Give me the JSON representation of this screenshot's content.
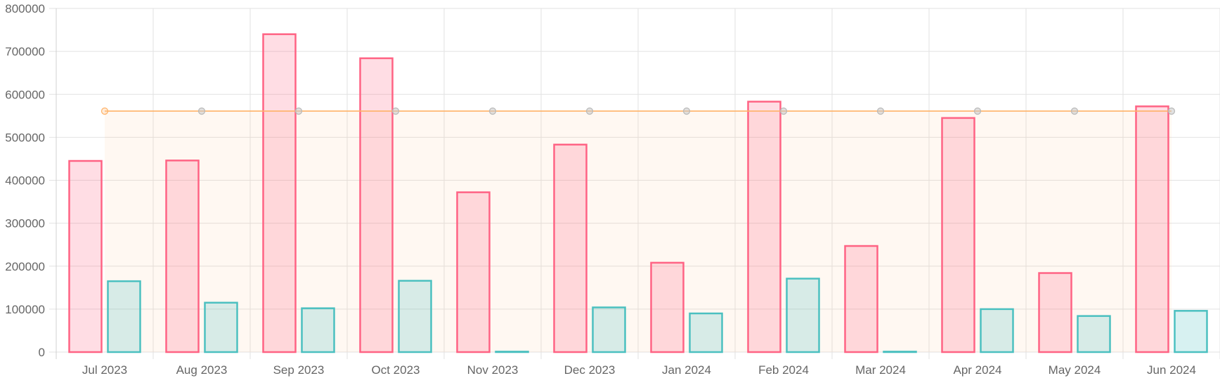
{
  "chart_data": {
    "type": "bar",
    "categories": [
      "Jul 2023",
      "Aug 2023",
      "Sep 2023",
      "Oct 2023",
      "Nov 2023",
      "Dec 2023",
      "Jan 2024",
      "Feb 2024",
      "Mar 2024",
      "Apr 2024",
      "May 2024",
      "Jun 2024"
    ],
    "series": [
      {
        "type": "bar",
        "color": "#ff6384",
        "fill": "rgba(255,99,132,0.22)",
        "values": [
          445000,
          446000,
          740000,
          684000,
          372000,
          483000,
          208000,
          583000,
          247000,
          545000,
          184000,
          572000
        ]
      },
      {
        "type": "bar",
        "color": "#4bc0c0",
        "fill": "rgba(75,192,192,0.22)",
        "values": [
          165000,
          115000,
          102000,
          166000,
          1000,
          104000,
          90000,
          171000,
          1000,
          100000,
          84000,
          96000
        ]
      },
      {
        "type": "line",
        "color": "#ffb266",
        "fill": "rgba(255,200,150,0.12)",
        "values": [
          561000,
          561000,
          561000,
          561000,
          561000,
          561000,
          561000,
          561000,
          561000,
          561000,
          561000,
          561000
        ]
      }
    ],
    "y_ticks": [
      "0",
      "100000",
      "200000",
      "300000",
      "400000",
      "500000",
      "600000",
      "700000",
      "800000"
    ],
    "ylim": [
      0,
      800000
    ],
    "grid": true,
    "xlabel": "",
    "ylabel": "",
    "title": ""
  }
}
